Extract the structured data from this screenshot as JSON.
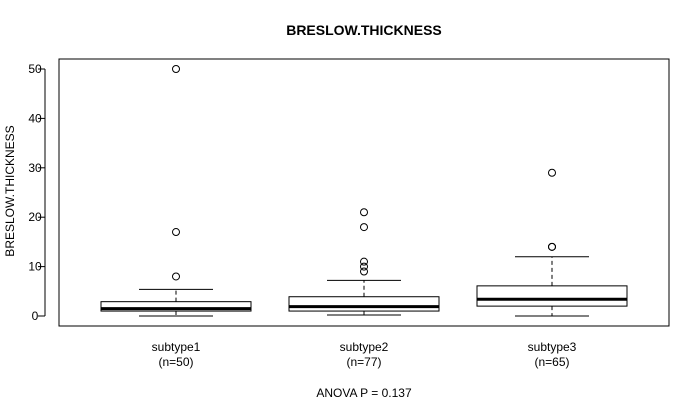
{
  "chart_data": {
    "type": "box",
    "title": "BRESLOW.THICKNESS",
    "ylabel": "BRESLOW.THICKNESS",
    "xlabel": "",
    "footnote": "ANOVA P = 0.137",
    "ylim": [
      -2,
      52
    ],
    "yticks": [
      0,
      10,
      20,
      30,
      40,
      50
    ],
    "grid": false,
    "legend": "none",
    "groups": [
      {
        "name": "subtype1",
        "count_label": "(n=50)",
        "whisker_low": 0,
        "q1": 1.0,
        "median": 1.5,
        "q3": 2.9,
        "whisker_high": 5.4,
        "outliers": [
          8,
          17,
          50
        ]
      },
      {
        "name": "subtype2",
        "count_label": "(n=77)",
        "whisker_low": 0.2,
        "q1": 1.0,
        "median": 1.9,
        "q3": 3.9,
        "whisker_high": 7.2,
        "outliers": [
          9,
          10,
          11,
          18,
          21
        ]
      },
      {
        "name": "subtype3",
        "count_label": "(n=65)",
        "whisker_low": 0,
        "q1": 2.0,
        "median": 3.4,
        "q3": 6.1,
        "whisker_high": 12,
        "outliers": [
          14,
          14,
          29
        ]
      }
    ]
  }
}
